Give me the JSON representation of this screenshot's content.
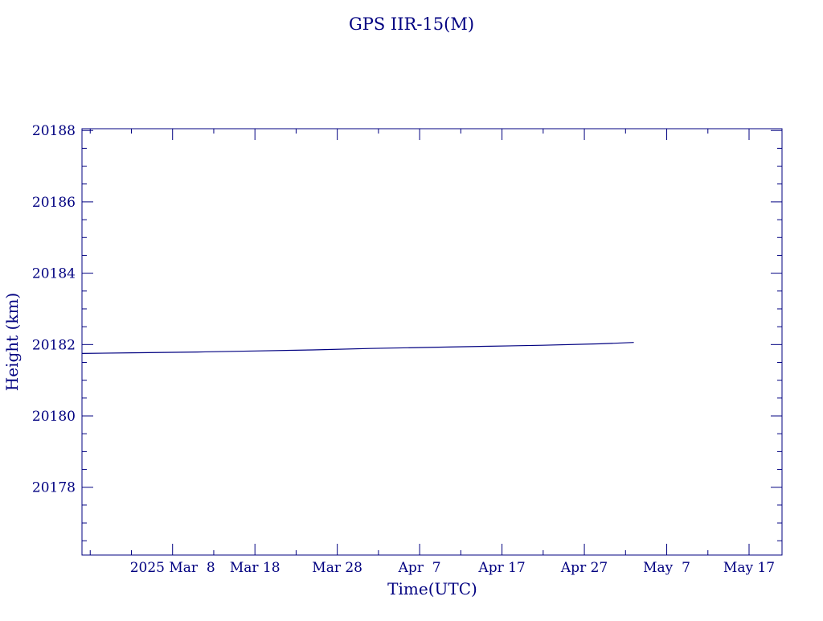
{
  "chart_data": {
    "type": "line",
    "title": "GPS IIR-15(M)",
    "xlabel": "Time(UTC)",
    "ylabel": "Height (km)",
    "x_tick_labels": [
      "2025 Mar  8",
      "Mar 18",
      "Mar 28",
      "Apr  7",
      "Apr 17",
      "Apr 27",
      "May  7",
      "May 17"
    ],
    "x_tick_dates": [
      "2025-03-08",
      "2025-03-18",
      "2025-03-28",
      "2025-04-07",
      "2025-04-17",
      "2025-04-27",
      "2025-05-07",
      "2025-05-17"
    ],
    "xlim": [
      "2025-02-25",
      "2025-05-21"
    ],
    "y_ticks": [
      20178,
      20180,
      20182,
      20184,
      20186,
      20188
    ],
    "ylim": [
      20176.1,
      20188.05
    ],
    "grid": false,
    "series": [
      {
        "x": [
          "2025-02-25",
          "2025-03-04",
          "2025-03-11",
          "2025-03-18",
          "2025-03-25",
          "2025-04-01",
          "2025-04-08",
          "2025-04-15",
          "2025-04-22",
          "2025-04-29",
          "2025-05-03"
        ],
        "y": [
          20181.75,
          20181.77,
          20181.79,
          20181.82,
          20181.85,
          20181.89,
          20181.92,
          20181.95,
          20181.98,
          20182.02,
          20182.06
        ],
        "color": "#000080"
      }
    ]
  }
}
